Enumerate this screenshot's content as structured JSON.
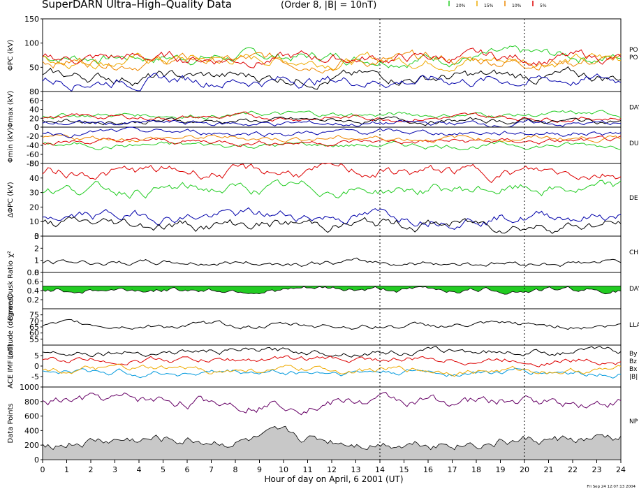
{
  "header": {
    "title": "SuperDARN Ultra–High–Quality Data",
    "subtitle": "(Order 8, |B| = 10nT)",
    "legend": [
      {
        "label": "20%",
        "color": "#22cc22"
      },
      {
        "label": "15%",
        "color": "#eeaa00"
      },
      {
        "label": "10%",
        "color": "#ee8800"
      },
      {
        "label": "5%",
        "color": "#dd0000"
      }
    ]
  },
  "footer": {
    "xlabel": "Hour of day on April, 6 2001 (UT)",
    "timestamp": "Fri Sep 24 12:07:13 2004"
  },
  "colors": {
    "c20": "#22cc22",
    "c15": "#eeaa00",
    "c10": "#ee8800",
    "c5": "#dd0000",
    "blue": "#0000aa",
    "black": "#000000",
    "fill": "#c8c8c8",
    "purple": "#660066",
    "cyan": "#0099dd"
  },
  "chart_data": [
    {
      "type": "line",
      "ylabel": "ΦPC (kV)",
      "right_labels": [
        "PO",
        "PO"
      ],
      "ylim": [
        0,
        150
      ],
      "yticks": [
        0,
        50,
        100,
        150
      ],
      "xlim": [
        0,
        24
      ],
      "series": [
        {
          "name": "20%",
          "level": 72
        },
        {
          "name": "15%",
          "level": 66
        },
        {
          "name": "10%",
          "level": 64
        },
        {
          "name": "5%",
          "level": 69
        },
        {
          "name": "black",
          "level": 30
        },
        {
          "name": "blue",
          "level": 24
        }
      ]
    },
    {
      "type": "line",
      "ylabel": "Φmax (kV)",
      "right_labels": [
        "DAY"
      ],
      "ylim": [
        0,
        80
      ],
      "yticks": [
        0,
        20,
        40,
        60,
        80
      ],
      "xlim": [
        0,
        24
      ],
      "series": [
        {
          "name": "20%",
          "level": 28
        },
        {
          "name": "5%",
          "level": 22
        },
        {
          "name": "black",
          "level": 14
        },
        {
          "name": "blue",
          "level": 8
        }
      ]
    },
    {
      "type": "line",
      "ylabel": "Φmin (kV)",
      "right_labels": [
        "DU"
      ],
      "ylim": [
        -80,
        0
      ],
      "yticks": [
        -80,
        -60,
        -40,
        -20,
        0
      ],
      "xlim": [
        0,
        24
      ],
      "series": [
        {
          "name": "20%",
          "level": -40
        },
        {
          "name": "5%",
          "level": -32
        },
        {
          "name": "10%",
          "level": -24
        },
        {
          "name": "blue",
          "level": -12
        }
      ]
    },
    {
      "type": "line",
      "ylabel": "ΔΦPC (kV)",
      "right_labels": [
        "DE"
      ],
      "ylim": [
        0,
        50
      ],
      "yticks": [
        0,
        10,
        20,
        30,
        40,
        50
      ],
      "xlim": [
        0,
        24
      ],
      "series": [
        {
          "name": "5%",
          "level": 44
        },
        {
          "name": "20%",
          "level": 32
        },
        {
          "name": "blue",
          "level": 14
        },
        {
          "name": "black",
          "level": 8
        }
      ]
    },
    {
      "type": "line",
      "ylabel": "χ²",
      "right_labels": [
        "CH"
      ],
      "ylim": [
        0,
        3
      ],
      "yticks": [
        0,
        1,
        2,
        3
      ],
      "xlim": [
        0,
        24
      ],
      "series": [
        {
          "name": "black",
          "level": 0.8
        }
      ]
    },
    {
      "type": "area",
      "ylabel": "Dawn/Dusk Ratio",
      "right_labels": [
        "DAY"
      ],
      "ylim": [
        0,
        0.8
      ],
      "yticks": [
        0.2,
        0.4,
        0.6,
        0.8
      ],
      "xlim": [
        0,
        24
      ],
      "series": [
        {
          "name": "20%",
          "level": 0.42
        }
      ]
    },
    {
      "type": "line",
      "ylabel": "Latitude (degrees)",
      "right_labels": [
        "LLA"
      ],
      "ylim": [
        50,
        80
      ],
      "yticks": [
        55,
        60,
        65,
        70,
        75
      ],
      "xlim": [
        0,
        24
      ],
      "series": [
        {
          "name": "black",
          "level": 66
        }
      ]
    },
    {
      "type": "line",
      "ylabel": "ACE IMF (nT)",
      "right_labels": [
        "By",
        "Bz",
        "Bx",
        "|B|"
      ],
      "ylim": [
        -10,
        10
      ],
      "yticks": [
        -5,
        0,
        5
      ],
      "xlim": [
        0,
        24
      ],
      "series": [
        {
          "name": "|B|",
          "level": 7
        },
        {
          "name": "By",
          "level": 3
        },
        {
          "name": "Bx",
          "level": -3
        },
        {
          "name": "Bz",
          "level": -2
        }
      ]
    },
    {
      "type": "area",
      "ylabel": "Data Points",
      "right_labels": [
        "NP"
      ],
      "ylim": [
        0,
        1000
      ],
      "yticks": [
        0,
        200,
        400,
        600,
        800,
        1000
      ],
      "xlim": [
        0,
        24
      ],
      "series": [
        {
          "name": "black",
          "level": 260
        },
        {
          "name": "purple",
          "level": 800
        }
      ]
    }
  ],
  "xaxis": {
    "ticks": [
      "0",
      "1",
      "2",
      "3",
      "4",
      "5",
      "6",
      "7",
      "8",
      "9",
      "10",
      "11",
      "12",
      "13",
      "14",
      "15",
      "16",
      "17",
      "18",
      "19",
      "20",
      "21",
      "22",
      "23",
      "24"
    ],
    "dashed_at": [
      14,
      20
    ]
  }
}
